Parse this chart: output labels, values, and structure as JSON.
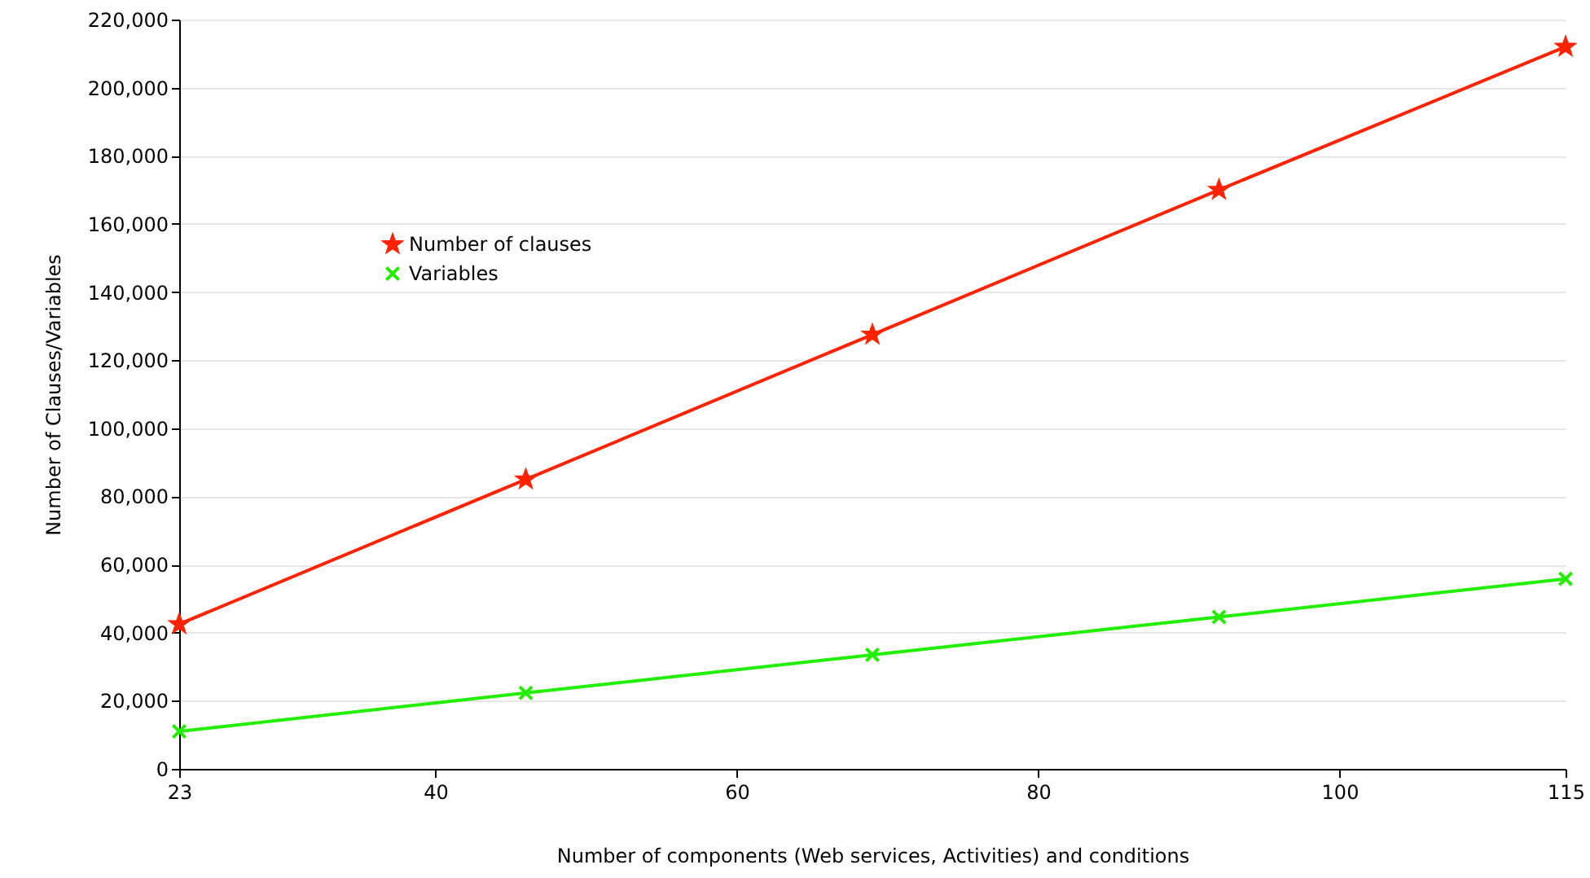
{
  "chart_data": {
    "type": "line",
    "xlabel": "Number of components (Web services, Activities) and conditions",
    "ylabel": "Number of Clauses/Variables",
    "x": [
      23,
      46,
      69,
      92,
      115
    ],
    "series": [
      {
        "name": "Number of clauses",
        "color": "#ff2200",
        "marker": "star",
        "values": [
          42500,
          85000,
          127500,
          170000,
          212000
        ]
      },
      {
        "name": "Variables",
        "color": "#22ee00",
        "marker": "cross",
        "values": [
          11000,
          22300,
          33500,
          44600,
          55800
        ]
      }
    ],
    "xlim": [
      23,
      115
    ],
    "xticks": [
      23,
      40,
      60,
      80,
      100,
      115
    ],
    "ylim": [
      0,
      220000
    ],
    "yticks": [
      0,
      {
        "value": 20000,
        "label": "20,000"
      },
      {
        "value": 40000,
        "label": "40,000"
      },
      {
        "value": 60000,
        "label": "60,000"
      },
      {
        "value": 80000,
        "label": "80,000"
      },
      {
        "value": 100000,
        "label": "100,000"
      },
      {
        "value": 120000,
        "label": "120,000"
      },
      {
        "value": 140000,
        "label": "140,000"
      },
      {
        "value": 160000,
        "label": "160,000"
      },
      {
        "value": 180000,
        "label": "180,000"
      },
      {
        "value": 200000,
        "label": "200,000"
      },
      {
        "value": 220000,
        "label": "220,000"
      }
    ],
    "grid": "y",
    "legend": "top left",
    "line_style": "solid"
  }
}
